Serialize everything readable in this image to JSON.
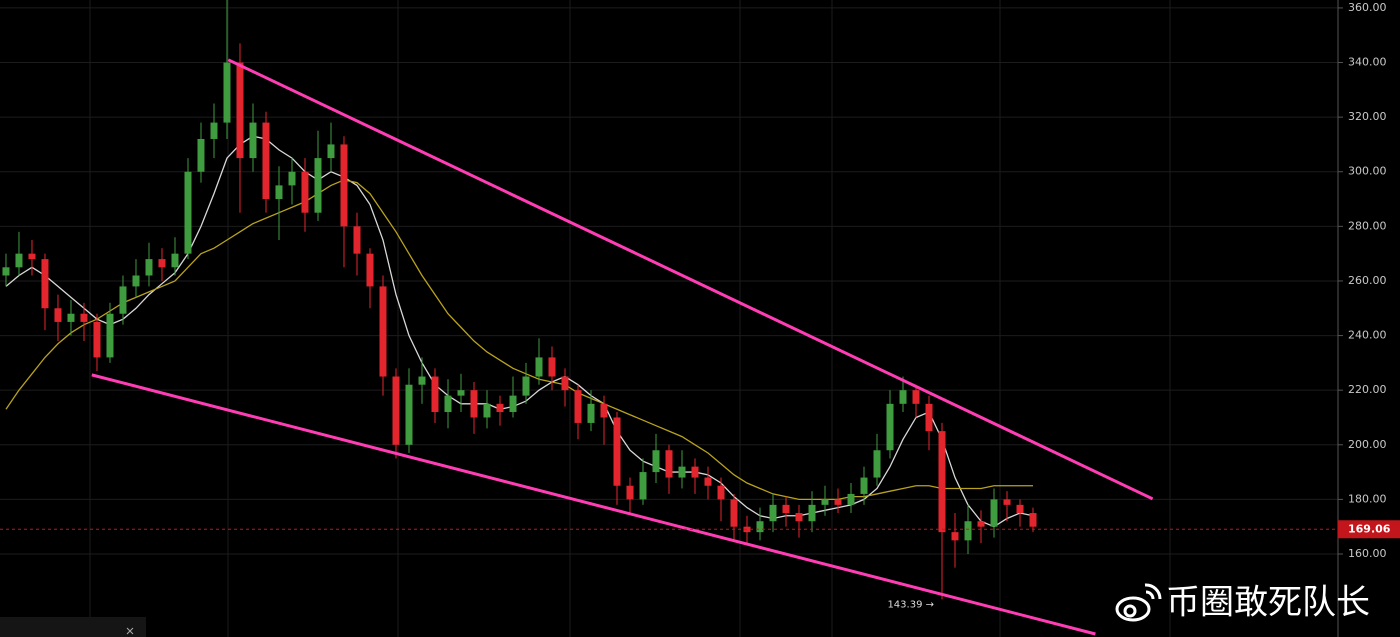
{
  "chart_data": {
    "type": "candlestick",
    "up_color": "#3f9c3f",
    "down_color": "#e3262e",
    "xlim": [
      -0.46,
      102.46
    ],
    "ylim": [
      129.6,
      362.9
    ],
    "yticks": [
      {
        "value": 160,
        "label": "160.00"
      },
      {
        "value": 180,
        "label": "180.00"
      },
      {
        "value": 200,
        "label": "200.00"
      },
      {
        "value": 220,
        "label": "220.00"
      },
      {
        "value": 240,
        "label": "240.00"
      },
      {
        "value": 260,
        "label": "260.00"
      },
      {
        "value": 280,
        "label": "280.00"
      },
      {
        "value": 300,
        "label": "300.00"
      },
      {
        "value": 320,
        "label": "320.00"
      },
      {
        "value": 340,
        "label": "340.00"
      },
      {
        "value": 360,
        "label": "360.00"
      }
    ],
    "grid": true,
    "candles": [
      [
        262,
        270,
        258,
        265
      ],
      [
        265,
        278,
        262,
        270
      ],
      [
        270,
        275,
        262,
        268
      ],
      [
        268,
        270,
        242,
        250
      ],
      [
        250,
        255,
        238,
        245
      ],
      [
        245,
        253,
        240,
        248
      ],
      [
        248,
        252,
        238,
        245
      ],
      [
        245,
        248,
        227,
        232
      ],
      [
        232,
        252,
        230,
        248
      ],
      [
        248,
        262,
        244,
        258
      ],
      [
        258,
        268,
        254,
        262
      ],
      [
        262,
        274,
        258,
        268
      ],
      [
        268,
        272,
        260,
        265
      ],
      [
        265,
        276,
        262,
        270
      ],
      [
        270,
        305,
        268,
        300
      ],
      [
        300,
        318,
        296,
        312
      ],
      [
        312,
        325,
        305,
        318
      ],
      [
        318,
        363,
        312,
        340
      ],
      [
        340,
        347,
        285,
        305
      ],
      [
        305,
        325,
        300,
        318
      ],
      [
        318,
        322,
        285,
        290
      ],
      [
        290,
        302,
        275,
        295
      ],
      [
        295,
        305,
        288,
        300
      ],
      [
        300,
        305,
        278,
        285
      ],
      [
        285,
        315,
        282,
        305
      ],
      [
        305,
        318,
        300,
        310
      ],
      [
        310,
        313,
        265,
        280
      ],
      [
        280,
        285,
        262,
        270
      ],
      [
        270,
        272,
        250,
        258
      ],
      [
        258,
        262,
        218,
        225
      ],
      [
        225,
        228,
        195,
        200
      ],
      [
        200,
        228,
        197,
        222
      ],
      [
        222,
        232,
        215,
        225
      ],
      [
        225,
        228,
        208,
        212
      ],
      [
        212,
        224,
        206,
        218
      ],
      [
        218,
        226,
        212,
        220
      ],
      [
        220,
        223,
        204,
        210
      ],
      [
        210,
        220,
        206,
        215
      ],
      [
        215,
        218,
        207,
        212
      ],
      [
        212,
        225,
        210,
        218
      ],
      [
        218,
        230,
        215,
        225
      ],
      [
        225,
        239,
        222,
        232
      ],
      [
        232,
        236,
        220,
        225
      ],
      [
        225,
        228,
        214,
        220
      ],
      [
        220,
        222,
        202,
        208
      ],
      [
        208,
        220,
        205,
        215
      ],
      [
        215,
        218,
        200,
        210
      ],
      [
        210,
        212,
        178,
        185
      ],
      [
        185,
        188,
        175,
        180
      ],
      [
        180,
        195,
        178,
        190
      ],
      [
        190,
        204,
        186,
        198
      ],
      [
        198,
        200,
        182,
        188
      ],
      [
        188,
        198,
        184,
        192
      ],
      [
        192,
        195,
        182,
        188
      ],
      [
        188,
        192,
        180,
        185
      ],
      [
        185,
        188,
        172,
        180
      ],
      [
        180,
        182,
        165,
        170
      ],
      [
        170,
        174,
        164,
        168
      ],
      [
        168,
        177,
        165,
        172
      ],
      [
        172,
        182,
        168,
        178
      ],
      [
        178,
        181,
        170,
        175
      ],
      [
        175,
        178,
        166,
        172
      ],
      [
        172,
        183,
        168,
        178
      ],
      [
        178,
        185,
        174,
        180
      ],
      [
        180,
        184,
        175,
        178
      ],
      [
        178,
        186,
        175,
        182
      ],
      [
        182,
        192,
        178,
        188
      ],
      [
        188,
        204,
        185,
        198
      ],
      [
        198,
        220,
        195,
        215
      ],
      [
        215,
        225,
        212,
        220
      ],
      [
        220,
        222,
        210,
        215
      ],
      [
        215,
        218,
        198,
        205
      ],
      [
        205,
        208,
        143.39,
        168
      ],
      [
        168,
        175,
        155,
        165
      ],
      [
        165,
        178,
        160,
        172
      ],
      [
        172,
        176,
        164,
        170
      ],
      [
        170,
        184,
        166,
        180
      ],
      [
        180,
        183,
        172,
        178
      ],
      [
        178,
        180,
        170,
        175
      ],
      [
        175,
        177,
        168,
        170
      ]
    ],
    "lines": [
      {
        "color": "#d8d8d8",
        "values": [
          258,
          262,
          265,
          262,
          258,
          254,
          250,
          246,
          244,
          246,
          250,
          255,
          259,
          263,
          270,
          280,
          292,
          305,
          310,
          313,
          312,
          308,
          305,
          300,
          297,
          300,
          298,
          295,
          288,
          275,
          255,
          240,
          230,
          222,
          218,
          215,
          215,
          215,
          213,
          214,
          216,
          220,
          223,
          225,
          222,
          218,
          215,
          205,
          198,
          194,
          192,
          190,
          190,
          190,
          189,
          186,
          181,
          177,
          174,
          173,
          174,
          174,
          175,
          176,
          177,
          178,
          180,
          184,
          192,
          202,
          210,
          212,
          202,
          188,
          178,
          172,
          170,
          173,
          175,
          174
        ]
      },
      {
        "color": "#b8a21e",
        "values": [
          213,
          220,
          226,
          232,
          237,
          241,
          244,
          246,
          249,
          252,
          254,
          256,
          258,
          260,
          265,
          270,
          272,
          275,
          278,
          281,
          283,
          285,
          287,
          289,
          292,
          295,
          297,
          296,
          292,
          285,
          278,
          270,
          262,
          255,
          248,
          243,
          238,
          234,
          231,
          228,
          226,
          224,
          223,
          222,
          219,
          217,
          215,
          213,
          211,
          209,
          207,
          205,
          203,
          200,
          197,
          193,
          189,
          186,
          184,
          182,
          181,
          180,
          180,
          180,
          180,
          181,
          181,
          182,
          183,
          184,
          185,
          185,
          184,
          184,
          184,
          184,
          185,
          185,
          185,
          185
        ]
      }
    ],
    "trendlines": [
      {
        "color": "#ff3db5",
        "x": [
          17.1,
          88.2
        ],
        "y": [
          341,
          180.2
        ]
      },
      {
        "color": "#ff3db5",
        "x": [
          6.6,
          83.8
        ],
        "y": [
          225.6,
          130.7
        ]
      }
    ],
    "last_price": 169.06,
    "last_price_color": "#c3161c",
    "low_annotation": {
      "index": 72,
      "value": 143.39,
      "label": "143.39 →"
    },
    "watermark": "币圈敢死队长"
  }
}
